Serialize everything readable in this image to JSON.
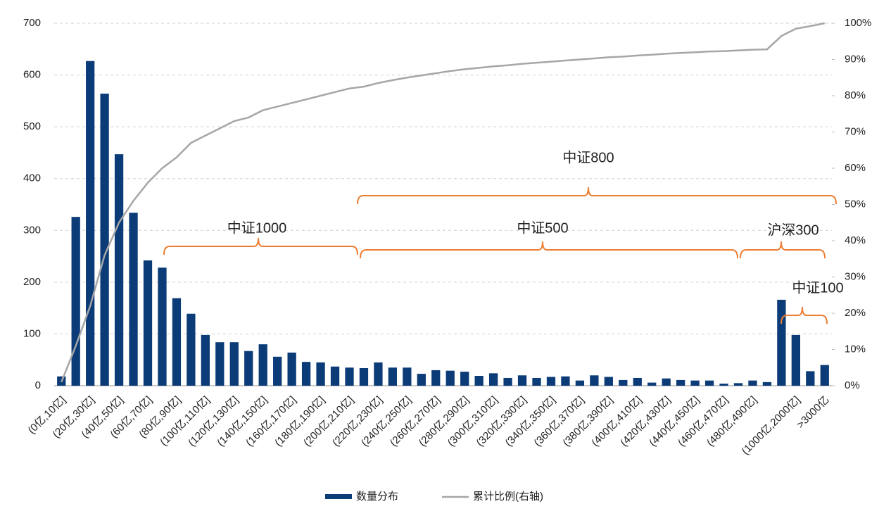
{
  "chart_data": {
    "type": "bar",
    "categories": [
      "(0亿,10亿]",
      null,
      "(20亿,30亿]",
      null,
      "(40亿,50亿]",
      null,
      "(60亿,70亿]",
      null,
      "(80亿,90亿]",
      null,
      "(100亿,110亿]",
      null,
      "(120亿,130亿]",
      null,
      "(140亿,150亿]",
      null,
      "(160亿,170亿]",
      null,
      "(180亿,190亿]",
      null,
      "(200亿,210亿]",
      null,
      "(220亿,230亿]",
      null,
      "(240亿,250亿]",
      null,
      "(260亿,270亿]",
      null,
      "(280亿,290亿]",
      null,
      "(300亿,310亿]",
      null,
      "(320亿,330亿]",
      null,
      "(340亿,350亿]",
      null,
      "(360亿,370亿]",
      null,
      "(380亿,390亿]",
      null,
      "(400亿,410亿]",
      null,
      "(420亿,430亿]",
      null,
      "(440亿,450亿]",
      null,
      "(460亿,470亿]",
      null,
      "(480亿,490亿]",
      null,
      null,
      "(1000亿,2000亿]",
      null,
      ">3000亿"
    ],
    "series": [
      {
        "name": "数量分布",
        "type": "bar",
        "color": "#0b3c78",
        "values": [
          18,
          326,
          627,
          564,
          447,
          334,
          242,
          228,
          169,
          139,
          98,
          84,
          84,
          67,
          80,
          56,
          64,
          46,
          45,
          37,
          35,
          34,
          45,
          35,
          35,
          23,
          30,
          29,
          27,
          19,
          24,
          15,
          20,
          15,
          17,
          18,
          10,
          20,
          17,
          11,
          15,
          6,
          14,
          11,
          10,
          10,
          4,
          5,
          10,
          7,
          166,
          98,
          28,
          40
        ]
      },
      {
        "name": "累计比例(右轴)",
        "type": "line",
        "axis": "y2",
        "color": "#a6a6a6",
        "values": [
          1,
          11,
          22,
          36,
          45,
          51,
          56,
          60,
          63,
          67,
          69,
          71,
          73,
          74,
          76,
          77,
          78,
          79,
          80,
          81,
          82,
          82.5,
          83.5,
          84.3,
          85,
          85.6,
          86.2,
          86.8,
          87.3,
          87.7,
          88.1,
          88.4,
          88.8,
          89.1,
          89.4,
          89.7,
          90,
          90.3,
          90.6,
          90.8,
          91.1,
          91.3,
          91.6,
          91.8,
          92,
          92.2,
          92.3,
          92.5,
          92.7,
          92.8,
          96.5,
          98.5,
          99.2,
          100
        ]
      }
    ],
    "ylim": [
      0,
      700
    ],
    "yticks": [
      0,
      100,
      200,
      300,
      400,
      500,
      600,
      700
    ],
    "y2lim": [
      0,
      100
    ],
    "y2ticks": [
      {
        "value": 0,
        "label": "0%"
      },
      {
        "value": 10,
        "label": "10%"
      },
      {
        "value": 20,
        "label": "20%"
      },
      {
        "value": 30,
        "label": "30%"
      },
      {
        "value": 40,
        "label": "40%"
      },
      {
        "value": 50,
        "label": "50%"
      },
      {
        "value": 60,
        "label": "60%"
      },
      {
        "value": 70,
        "label": "70%"
      },
      {
        "value": 80,
        "label": "80%"
      },
      {
        "value": 90,
        "label": "90%"
      },
      {
        "value": 100,
        "label": "100%"
      }
    ],
    "grid": true,
    "annotations": [
      "中证1000",
      "中证800",
      "中证500",
      "沪深300",
      "中证100"
    ]
  }
}
